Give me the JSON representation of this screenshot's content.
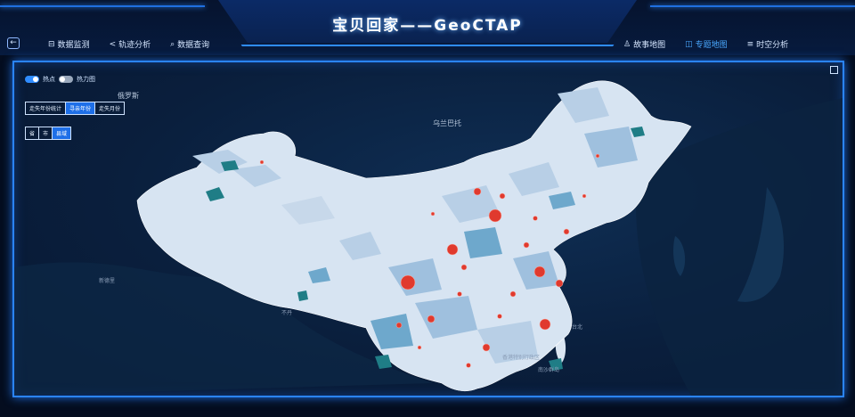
{
  "header": {
    "title": "宝贝回家——GeoCTAP"
  },
  "nav_left": [
    {
      "icon": "monitor-icon",
      "glyph": "⊟",
      "label": "数据监测",
      "active": false
    },
    {
      "icon": "share-icon",
      "glyph": "<",
      "label": "轨迹分析",
      "active": false
    },
    {
      "icon": "search-icon",
      "glyph": "⌕",
      "label": "数据查询",
      "active": false
    }
  ],
  "nav_right": [
    {
      "icon": "users-icon",
      "glyph": "♙",
      "label": "故事地图",
      "active": false
    },
    {
      "icon": "map-icon",
      "glyph": "◫",
      "label": "专题地图",
      "active": true
    },
    {
      "icon": "list-icon",
      "glyph": "≡",
      "label": "时空分析",
      "active": false
    }
  ],
  "controls": {
    "toggle_a": {
      "label": "热点",
      "on": true
    },
    "toggle_b": {
      "label": "热力图",
      "on": false
    },
    "time_mode": [
      "走失年份统计",
      "寻亲年份",
      "走失月份"
    ],
    "time_mode_selected": 1,
    "level": [
      "省",
      "市",
      "县域"
    ],
    "level_selected": 2
  },
  "map": {
    "labels": [
      {
        "text": "俄罗斯",
        "big": true
      },
      {
        "text": "乌兰巴托",
        "big": true
      },
      {
        "text": "台北",
        "big": false
      },
      {
        "text": "香港特别行政区",
        "big": false
      },
      {
        "text": "南沙群岛",
        "big": false
      },
      {
        "text": "新德里",
        "big": false
      },
      {
        "text": "不丹",
        "big": false
      }
    ],
    "colors": {
      "province_fill": "#d7e4f2",
      "choropleth_light": "#b8cfe6",
      "choropleth_mid": "#6ea8cc",
      "choropleth_dark": "#1f7d86",
      "hotspot": "#e03a2e"
    }
  }
}
